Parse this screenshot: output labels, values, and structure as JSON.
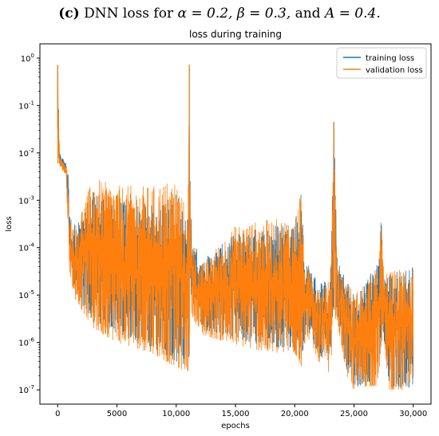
{
  "caption": {
    "panel_label": "(c)",
    "prefix": " DNN loss for ",
    "alpha": "α = 0.2, ",
    "beta": "β = 0.3,",
    "and_word": " and ",
    "A": "A = 0.4."
  },
  "colors": {
    "training": "#1f77b4",
    "validation": "#ff7f0e"
  },
  "chart_data": {
    "type": "line",
    "title": "loss during training",
    "xlabel": "epochs",
    "ylabel": "loss",
    "yscale": "log",
    "xlim": [
      -1500,
      31500
    ],
    "ylim": [
      5e-08,
      2
    ],
    "x_ticks": [
      0,
      5000,
      10000,
      15000,
      20000,
      25000,
      30000
    ],
    "x_tick_labels": [
      "0",
      "5000",
      "10,000",
      "15,000",
      "20,000",
      "25,000",
      "30,000"
    ],
    "y_ticks": [
      1e-07,
      1e-06,
      1e-05,
      0.0001,
      0.001,
      0.01,
      0.1,
      1
    ],
    "y_tick_labels": [
      "10^-7",
      "10^-6",
      "10^-5",
      "10^-4",
      "10^-3",
      "10^-2",
      "10^-1",
      "10^0"
    ],
    "legend_position": "top-right",
    "series": [
      {
        "name": "training loss",
        "envelope_x": [
          0,
          150,
          700,
          900,
          1000,
          1500,
          3000,
          5000,
          8000,
          10000,
          11000,
          11100,
          11150,
          11300,
          12000,
          15000,
          18000,
          20000,
          20600,
          20800,
          21000,
          22000,
          23000,
          23300,
          23600,
          24500,
          25000,
          26000,
          27000,
          27300,
          27500,
          28000,
          30000
        ],
        "envelope_low": [
          0.007,
          0.006,
          0.004,
          0.0003,
          4e-05,
          1e-05,
          3e-06,
          1.5e-06,
          8e-07,
          4e-07,
          3e-07,
          3e-07,
          4e-05,
          5e-06,
          2e-06,
          1.2e-06,
          8e-07,
          8e-07,
          4e-07,
          1e-06,
          2e-06,
          6e-07,
          3e-07,
          5e-06,
          3e-06,
          2e-07,
          1e-07,
          1.5e-07,
          1.5e-07,
          1e-06,
          1e-06,
          1.2e-07,
          1.1e-07
        ],
        "envelope_high": [
          0.7,
          0.01,
          0.006,
          0.005,
          0.0005,
          0.0003,
          0.0015,
          0.001,
          0.0008,
          0.0015,
          0.0004,
          0.72,
          0.005,
          0.0003,
          5e-05,
          0.0002,
          0.0003,
          0.0004,
          0.002,
          5e-05,
          5e-05,
          2e-05,
          2e-05,
          0.045,
          5e-05,
          2e-05,
          1e-05,
          2e-05,
          5e-05,
          0.0007,
          3e-05,
          3e-05,
          4e-05
        ]
      },
      {
        "name": "validation loss",
        "envelope_x": [
          0,
          150,
          700,
          900,
          1000,
          1500,
          3000,
          5000,
          8000,
          10000,
          11000,
          11100,
          11150,
          11300,
          12000,
          15000,
          18000,
          20000,
          20600,
          20800,
          21000,
          22000,
          23000,
          23300,
          23600,
          24500,
          25000,
          26000,
          27000,
          27300,
          27500,
          28000,
          30000
        ],
        "envelope_low": [
          0.006,
          0.005,
          0.0035,
          0.0002,
          3e-05,
          8e-06,
          2e-06,
          1e-06,
          6e-07,
          3e-07,
          2.5e-07,
          2.5e-07,
          3e-05,
          4e-06,
          1.5e-06,
          9e-07,
          6e-07,
          6e-07,
          3e-07,
          8e-07,
          1.5e-06,
          4e-07,
          2e-07,
          4e-06,
          2.5e-06,
          1.5e-07,
          1e-07,
          1.2e-07,
          1.2e-07,
          8e-07,
          8e-07,
          1e-07,
          1e-07
        ],
        "envelope_high": [
          0.72,
          0.009,
          0.005,
          0.004,
          0.0004,
          0.0003,
          0.003,
          0.002,
          0.002,
          0.003,
          0.0005,
          0.72,
          0.004,
          0.0002,
          4e-05,
          0.0003,
          0.0004,
          0.0004,
          0.0025,
          4e-05,
          4e-05,
          2e-05,
          2e-05,
          0.045,
          4e-05,
          2e-05,
          1e-05,
          2e-05,
          4e-05,
          0.0005,
          3e-05,
          3e-05,
          5e-05
        ]
      }
    ]
  }
}
